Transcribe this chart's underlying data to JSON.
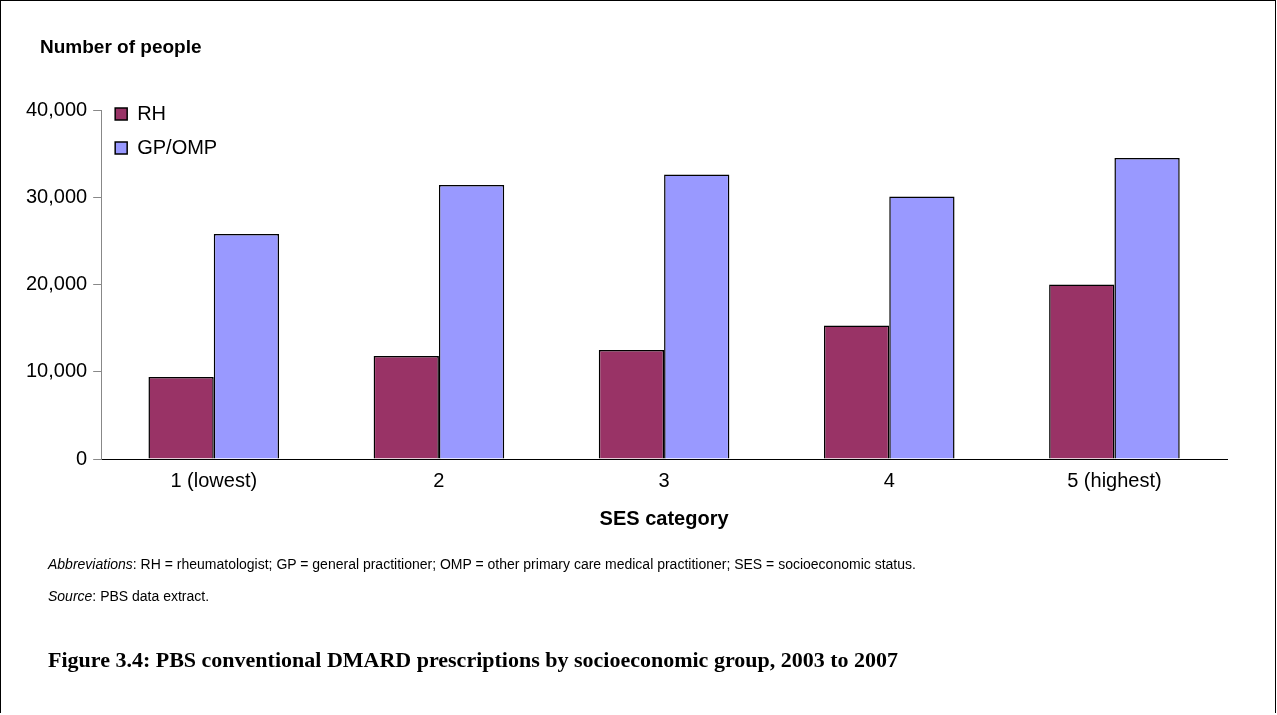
{
  "chart_data": {
    "type": "bar",
    "title": "Figure 3.4: PBS conventional DMARD prescriptions by socioeconomic group, 2003 to 2007",
    "xlabel": "SES category",
    "ylabel": "Number of people",
    "categories": [
      "1 (lowest)",
      "2",
      "3",
      "4",
      "5 (highest)"
    ],
    "series": [
      {
        "name": "RH",
        "color": "#993366",
        "values": [
          9400,
          11800,
          12500,
          15300,
          20000
        ]
      },
      {
        "name": "GP/OMP",
        "color": "#9999ff",
        "values": [
          25800,
          31400,
          32600,
          30100,
          34500
        ]
      }
    ],
    "ylim": [
      0,
      40000
    ],
    "yticks": [
      {
        "value": 0,
        "label": "0"
      },
      {
        "value": 10000,
        "label": "10,000"
      },
      {
        "value": 20000,
        "label": "20,000"
      },
      {
        "value": 30000,
        "label": "30,000"
      },
      {
        "value": 40000,
        "label": "40,000"
      }
    ],
    "grid": false,
    "legend": "top left",
    "annotations": [
      "Abbreviations: RH = rheumatologist; GP = general practitioner; OMP = other primary care medical practitioner; SES = socioeconomic status.",
      "Source: PBS data extract."
    ]
  }
}
